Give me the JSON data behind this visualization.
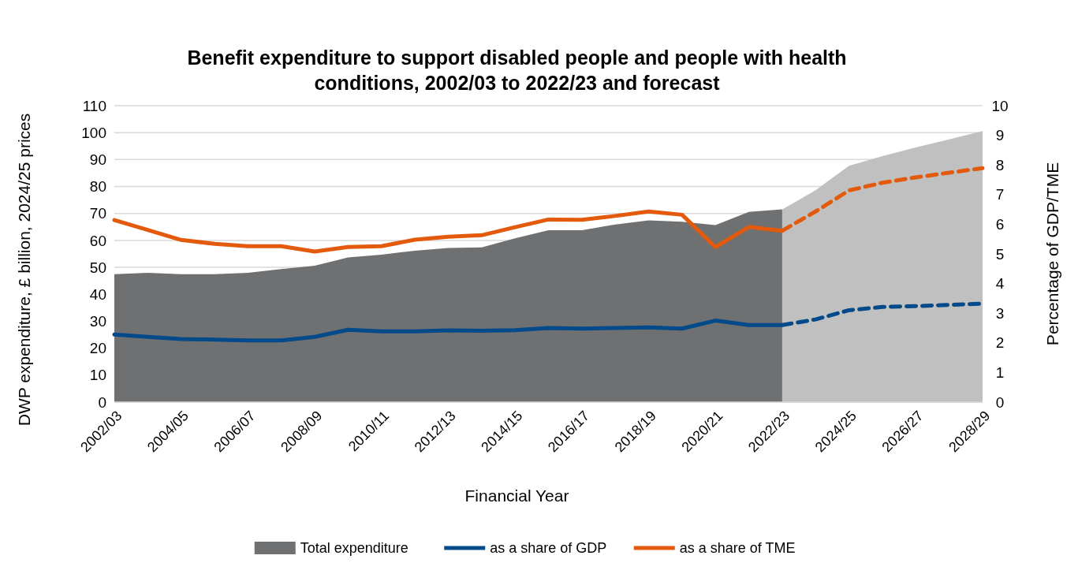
{
  "chart_data": {
    "type": "area",
    "title": "Benefit expenditure to support disabled people and people with health conditions, 2002/03 to 2022/23 and forecast",
    "xlabel": "Financial Year",
    "ylabel": "DWP expenditure, £ billion, 2024/25 prices",
    "y2label": "Percentage of GDP/TME",
    "categories": [
      "2002/03",
      null,
      "2004/05",
      null,
      "2006/07",
      null,
      "2008/09",
      null,
      "2010/11",
      null,
      "2012/13",
      null,
      "2014/15",
      null,
      "2016/17",
      null,
      "2018/19",
      null,
      "2020/21",
      null,
      "2022/23",
      null,
      "2024/25",
      null,
      "2026/27",
      null,
      "2028/29"
    ],
    "ylim": [
      0,
      110
    ],
    "yticks": [
      0,
      10,
      20,
      30,
      40,
      50,
      60,
      70,
      80,
      90,
      100,
      110
    ],
    "y2lim": [
      0,
      10
    ],
    "y2ticks": [
      0,
      1,
      2,
      3,
      4,
      5,
      6,
      7,
      8,
      9,
      10
    ],
    "grid": "y",
    "legend": "bottom",
    "series": [
      {
        "name": "Total expenditure",
        "color": "#6f7072",
        "values": [
          47.5,
          48,
          47.5,
          47.5,
          48,
          49.4,
          50.6,
          53.7,
          54.7,
          56.2,
          57.2,
          57.4,
          60.8,
          63.8,
          63.8,
          65.9,
          67.4,
          66.9,
          65.7,
          70.6,
          71.5,
          null,
          null,
          null,
          null,
          null,
          null
        ]
      },
      {
        "color": "#c0c0c0",
        "values": [
          null,
          null,
          null,
          null,
          null,
          null,
          null,
          null,
          null,
          null,
          null,
          null,
          null,
          null,
          null,
          null,
          null,
          null,
          null,
          null,
          71.5,
          78.6,
          87.7,
          91.3,
          94.5,
          97.5,
          100.6
        ]
      },
      {
        "type": "line",
        "name": "as a share of GDP",
        "color": "#034a8a",
        "axis": "y2",
        "line_style": "solid",
        "values": [
          2.28,
          2.2,
          2.13,
          2.11,
          2.08,
          2.08,
          2.2,
          2.44,
          2.39,
          2.39,
          2.42,
          2.41,
          2.43,
          2.5,
          2.48,
          2.5,
          2.52,
          2.48,
          2.75,
          2.6,
          2.6,
          null,
          null,
          null,
          null,
          null,
          null
        ]
      },
      {
        "type": "line",
        "name": "as a share of TME",
        "color": "#e35a0c",
        "axis": "y2",
        "line_style": "solid",
        "values": [
          6.14,
          5.81,
          5.47,
          5.34,
          5.26,
          5.26,
          5.08,
          5.23,
          5.26,
          5.48,
          5.58,
          5.63,
          5.9,
          6.16,
          6.15,
          6.28,
          6.43,
          6.32,
          5.23,
          5.91,
          5.78,
          null,
          null,
          null,
          null,
          null,
          null
        ]
      },
      {
        "type": "line",
        "color": "#034a8a",
        "axis": "y2",
        "line_style": "dashed",
        "values": [
          null,
          null,
          null,
          null,
          null,
          null,
          null,
          null,
          null,
          null,
          null,
          null,
          null,
          null,
          null,
          null,
          null,
          null,
          null,
          null,
          2.6,
          2.79,
          3.1,
          3.21,
          3.24,
          3.28,
          3.32
        ]
      },
      {
        "type": "line",
        "color": "#e35a0c",
        "axis": "y2",
        "line_style": "dashed",
        "values": [
          null,
          null,
          null,
          null,
          null,
          null,
          null,
          null,
          null,
          null,
          null,
          null,
          null,
          null,
          null,
          null,
          null,
          null,
          null,
          null,
          5.78,
          6.43,
          7.14,
          7.4,
          7.58,
          7.74,
          7.89
        ]
      }
    ]
  }
}
